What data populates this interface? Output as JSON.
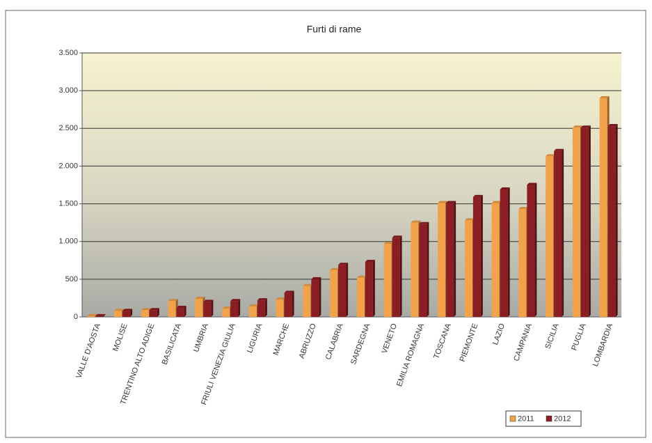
{
  "chart_data": {
    "type": "bar",
    "title": "Furti di rame",
    "categories": [
      "VALLE D'AOSTA",
      "MOLISE",
      "TRENTINO ALTO ADIGE",
      "BASILICATA",
      "UMBRIA",
      "FRIULI VENEZIA GIULIA",
      "LIGURIA",
      "MARCHE",
      "ABRUZZO",
      "CALABRIA",
      "SARDEGNA",
      "VENETO",
      "EMILIA ROMAGNA",
      "TOSCANA",
      "PIEMONTE",
      "LAZIO",
      "CAMPANIA",
      "SICILIA",
      "PUGLIA",
      "LOMBARDIA"
    ],
    "series": [
      {
        "name": "2011",
        "color": "#f2a24a",
        "values": [
          10,
          80,
          90,
          210,
          240,
          110,
          140,
          230,
          410,
          620,
          520,
          970,
          1250,
          1510,
          1280,
          1510,
          1430,
          2130,
          2510,
          2900
        ]
      },
      {
        "name": "2012",
        "color": "#8b1e22",
        "values": [
          10,
          80,
          90,
          120,
          200,
          210,
          220,
          320,
          500,
          690,
          730,
          1050,
          1230,
          1510,
          1590,
          1690,
          1750,
          2200,
          2510,
          2530
        ]
      }
    ],
    "ylim": [
      0,
      3500
    ],
    "yticks": [
      0,
      500,
      {
        "value": 1000,
        "label": "1.000"
      },
      {
        "value": 1500,
        "label": "1.500"
      },
      {
        "value": 2000,
        "label": "2.000"
      },
      {
        "value": 2500,
        "label": "2.500"
      },
      {
        "value": 3000,
        "label": "3.000"
      },
      {
        "value": 3500,
        "label": "3.500"
      }
    ],
    "grid": true,
    "legend": "lower right"
  }
}
